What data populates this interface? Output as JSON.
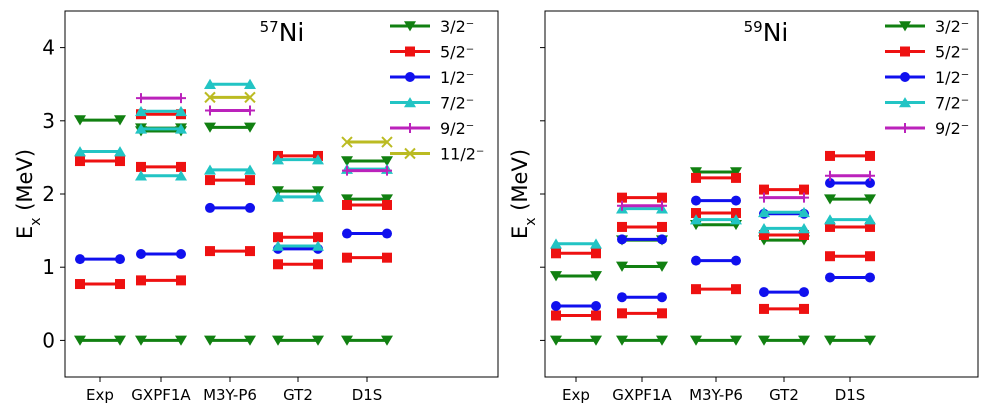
{
  "level_colors": {
    "3/2": "#118011",
    "5/2": "#ee1111",
    "1/2": "#1010ee",
    "7/2": "#22c4c4",
    "9/2": "#bb22bb",
    "11/2": "#bbbb22"
  },
  "chart_data": [
    {
      "type": "level-scheme",
      "title": "57Ni",
      "title_mass": "57",
      "title_element": "Ni",
      "ylabel": "Ex (MeV)",
      "ylabel_main": "E",
      "ylabel_sub": "x",
      "ylabel_unit": " (MeV)",
      "ylim": [
        -0.5,
        4.5
      ],
      "yticks": [
        "0",
        "1",
        "2",
        "3",
        "4"
      ],
      "ytick_values": [
        0,
        1,
        2,
        3,
        4
      ],
      "categories": [
        "Exp",
        "GXPF1A",
        "M3Y-P6",
        "GT2",
        "D1S"
      ],
      "legend_position": "top-right",
      "series": [
        {
          "name": "3/2⁻",
          "key": "3/2",
          "marker": "triangle-down",
          "values": [
            [
              0,
              3.01
            ],
            [
              0,
              2.86,
              2.9
            ],
            [
              0,
              2.91
            ],
            [
              0,
              2.04
            ],
            [
              0,
              1.93,
              2.45
            ]
          ]
        },
        {
          "name": "5/2⁻",
          "key": "5/2",
          "marker": "square",
          "values": [
            [
              0.77,
              2.45
            ],
            [
              0.82,
              2.37,
              3.09
            ],
            [
              1.22,
              2.19
            ],
            [
              1.04,
              1.41,
              2.52
            ],
            [
              1.13,
              1.85
            ]
          ]
        },
        {
          "name": "1/2⁻",
          "key": "1/2",
          "marker": "circle",
          "values": [
            [
              1.11
            ],
            [
              1.18
            ],
            [
              1.81
            ],
            [
              1.25
            ],
            [
              1.46
            ]
          ]
        },
        {
          "name": "7/2⁻",
          "key": "7/2",
          "marker": "triangle-up",
          "values": [
            [
              2.58
            ],
            [
              2.25,
              2.89,
              3.13
            ],
            [
              2.33,
              3.5
            ],
            [
              1.29,
              1.96,
              2.47
            ],
            [
              2.34
            ]
          ]
        },
        {
          "name": "9/2⁻",
          "key": "9/2",
          "marker": "plus",
          "values": [
            [],
            [
              3.31
            ],
            [
              3.14
            ],
            [],
            [
              2.32
            ]
          ]
        },
        {
          "name": "11/2⁻",
          "key": "11/2",
          "marker": "x",
          "values": [
            [],
            [],
            [
              3.32
            ],
            [],
            [
              2.71
            ]
          ]
        }
      ]
    },
    {
      "type": "level-scheme",
      "title": "59Ni",
      "title_mass": "59",
      "title_element": "Ni",
      "ylabel": "Ex (MeV)",
      "ylabel_main": "E",
      "ylabel_sub": "x",
      "ylabel_unit": " (MeV)",
      "ylim": [
        -0.5,
        4.5
      ],
      "yticks": [],
      "ytick_values": [
        0,
        1,
        2,
        3,
        4
      ],
      "categories": [
        "Exp",
        "GXPF1A",
        "M3Y-P6",
        "GT2",
        "D1S"
      ],
      "legend_position": "top-right",
      "series": [
        {
          "name": "3/2⁻",
          "key": "3/2",
          "marker": "triangle-down",
          "values": [
            [
              0,
              0.88
            ],
            [
              0,
              1.01,
              1.37
            ],
            [
              0,
              1.58,
              2.3
            ],
            [
              0,
              1.37
            ],
            [
              0,
              1.93
            ]
          ]
        },
        {
          "name": "5/2⁻",
          "key": "5/2",
          "marker": "square",
          "values": [
            [
              0.34,
              1.19
            ],
            [
              0.37,
              1.55,
              1.95
            ],
            [
              0.7,
              1.74,
              2.22
            ],
            [
              0.43,
              1.44,
              2.06
            ],
            [
              1.15,
              1.55,
              2.52
            ]
          ]
        },
        {
          "name": "1/2⁻",
          "key": "1/2",
          "marker": "circle",
          "values": [
            [
              0.47
            ],
            [
              0.59,
              1.38
            ],
            [
              1.09,
              1.91
            ],
            [
              0.66,
              1.73
            ],
            [
              0.86,
              2.15
            ]
          ]
        },
        {
          "name": "7/2⁻",
          "key": "7/2",
          "marker": "triangle-up",
          "values": [
            [
              1.32
            ],
            [
              1.8
            ],
            [
              1.65
            ],
            [
              1.53,
              1.75
            ],
            [
              1.65
            ]
          ]
        },
        {
          "name": "9/2⁻",
          "key": "9/2",
          "marker": "plus",
          "values": [
            [],
            [
              1.84
            ],
            [],
            [
              1.95
            ],
            [
              2.25
            ]
          ]
        }
      ]
    }
  ]
}
